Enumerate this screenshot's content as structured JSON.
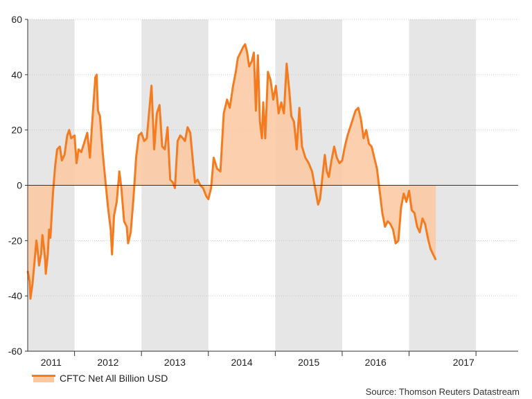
{
  "chart_data": {
    "type": "area",
    "title": "",
    "xlabel": "",
    "ylabel": "",
    "ylim": [
      -60,
      60
    ],
    "yticks": [
      60,
      40,
      20,
      0,
      -20,
      -40,
      -60
    ],
    "xlim": [
      2010.6,
      2017.93
    ],
    "year_labels": [
      "2011",
      "2012",
      "2013",
      "2014",
      "2015",
      "2016",
      "2017"
    ],
    "shaded_years": [
      {
        "start": 2010.6,
        "end": 2011.3
      },
      {
        "start": 2012.3,
        "end": 2013.3
      },
      {
        "start": 2014.3,
        "end": 2015.3
      },
      {
        "start": 2016.3,
        "end": 2017.3
      }
    ],
    "series": [
      {
        "name": "CFTC Net All Billion USD",
        "color": "#f47b20",
        "fill_color": "#fbc8a0",
        "points": [
          [
            2010.6,
            -31
          ],
          [
            2010.63,
            -35
          ],
          [
            2010.64,
            -41
          ],
          [
            2010.67,
            -36
          ],
          [
            2010.7,
            -28
          ],
          [
            2010.73,
            -20
          ],
          [
            2010.75,
            -24
          ],
          [
            2010.77,
            -29
          ],
          [
            2010.8,
            -25
          ],
          [
            2010.82,
            -18
          ],
          [
            2010.84,
            -22
          ],
          [
            2010.86,
            -27
          ],
          [
            2010.87,
            -32
          ],
          [
            2010.9,
            -25
          ],
          [
            2010.92,
            -16
          ],
          [
            2010.94,
            -19
          ],
          [
            2010.96,
            -10
          ],
          [
            2010.98,
            -2
          ],
          [
            2011.01,
            7
          ],
          [
            2011.04,
            13
          ],
          [
            2011.08,
            14
          ],
          [
            2011.11,
            9
          ],
          [
            2011.15,
            11
          ],
          [
            2011.19,
            18
          ],
          [
            2011.22,
            20
          ],
          [
            2011.25,
            17
          ],
          [
            2011.3,
            18
          ],
          [
            2011.33,
            8
          ],
          [
            2011.36,
            13
          ],
          [
            2011.4,
            12
          ],
          [
            2011.44,
            15
          ],
          [
            2011.49,
            19
          ],
          [
            2011.53,
            10
          ],
          [
            2011.57,
            25
          ],
          [
            2011.61,
            39
          ],
          [
            2011.63,
            40
          ],
          [
            2011.65,
            27
          ],
          [
            2011.68,
            25
          ],
          [
            2011.72,
            12
          ],
          [
            2011.76,
            2
          ],
          [
            2011.8,
            -8
          ],
          [
            2011.84,
            -16
          ],
          [
            2011.86,
            -25
          ],
          [
            2011.89,
            -11
          ],
          [
            2011.93,
            -6
          ],
          [
            2011.97,
            5
          ],
          [
            2012.0,
            -1
          ],
          [
            2012.04,
            -13
          ],
          [
            2012.08,
            -15
          ],
          [
            2012.1,
            -21
          ],
          [
            2012.14,
            -17
          ],
          [
            2012.18,
            -5
          ],
          [
            2012.22,
            10
          ],
          [
            2012.26,
            18
          ],
          [
            2012.3,
            19
          ],
          [
            2012.34,
            16
          ],
          [
            2012.38,
            17
          ],
          [
            2012.42,
            28
          ],
          [
            2012.45,
            36
          ],
          [
            2012.49,
            13
          ],
          [
            2012.53,
            26
          ],
          [
            2012.57,
            29
          ],
          [
            2012.61,
            14
          ],
          [
            2012.65,
            13
          ],
          [
            2012.69,
            21
          ],
          [
            2012.73,
            2
          ],
          [
            2012.77,
            1
          ],
          [
            2012.8,
            -1
          ],
          [
            2012.84,
            16
          ],
          [
            2012.88,
            18
          ],
          [
            2012.92,
            17
          ],
          [
            2012.95,
            16
          ],
          [
            2012.99,
            21
          ],
          [
            2013.03,
            19
          ],
          [
            2013.06,
            11
          ],
          [
            2013.1,
            1
          ],
          [
            2013.14,
            2
          ],
          [
            2013.18,
            0
          ],
          [
            2013.22,
            -1
          ],
          [
            2013.27,
            -4
          ],
          [
            2013.3,
            -5
          ],
          [
            2013.34,
            -1
          ],
          [
            2013.38,
            10
          ],
          [
            2013.43,
            6
          ],
          [
            2013.48,
            5
          ],
          [
            2013.53,
            26
          ],
          [
            2013.58,
            31
          ],
          [
            2013.62,
            28
          ],
          [
            2013.67,
            36
          ],
          [
            2013.71,
            41
          ],
          [
            2013.74,
            46
          ],
          [
            2013.78,
            48
          ],
          [
            2013.82,
            50
          ],
          [
            2013.85,
            51
          ],
          [
            2013.88,
            48
          ],
          [
            2013.91,
            43
          ],
          [
            2013.95,
            45
          ],
          [
            2013.98,
            48
          ],
          [
            2014.01,
            27
          ],
          [
            2014.04,
            47
          ],
          [
            2014.07,
            23
          ],
          [
            2014.1,
            17
          ],
          [
            2014.12,
            30
          ],
          [
            2014.15,
            17
          ],
          [
            2014.19,
            41
          ],
          [
            2014.23,
            38
          ],
          [
            2014.27,
            31
          ],
          [
            2014.31,
            36
          ],
          [
            2014.35,
            26
          ],
          [
            2014.39,
            30
          ],
          [
            2014.43,
            26
          ],
          [
            2014.47,
            44
          ],
          [
            2014.51,
            34
          ],
          [
            2014.54,
            25
          ],
          [
            2014.58,
            23
          ],
          [
            2014.62,
            13
          ],
          [
            2014.66,
            28
          ],
          [
            2014.7,
            14
          ],
          [
            2014.75,
            10
          ],
          [
            2014.8,
            8
          ],
          [
            2014.85,
            5
          ],
          [
            2014.88,
            1
          ],
          [
            2014.91,
            -3
          ],
          [
            2014.94,
            -7
          ],
          [
            2014.97,
            -5
          ],
          [
            2015.0,
            2
          ],
          [
            2015.04,
            11
          ],
          [
            2015.07,
            5
          ],
          [
            2015.1,
            3
          ],
          [
            2015.14,
            9
          ],
          [
            2015.18,
            14
          ],
          [
            2015.22,
            10
          ],
          [
            2015.26,
            8
          ],
          [
            2015.3,
            9
          ],
          [
            2015.34,
            14
          ],
          [
            2015.38,
            18
          ],
          [
            2015.42,
            21
          ],
          [
            2015.46,
            24
          ],
          [
            2015.5,
            27
          ],
          [
            2015.54,
            28
          ],
          [
            2015.58,
            24
          ],
          [
            2015.62,
            17
          ],
          [
            2015.66,
            20
          ],
          [
            2015.7,
            15
          ],
          [
            2015.74,
            14
          ],
          [
            2015.78,
            10
          ],
          [
            2015.82,
            6
          ],
          [
            2015.86,
            -2
          ],
          [
            2015.9,
            -10
          ],
          [
            2015.94,
            -15
          ],
          [
            2015.98,
            -13
          ],
          [
            2016.02,
            -14
          ],
          [
            2016.06,
            -16
          ],
          [
            2016.1,
            -21
          ],
          [
            2016.14,
            -20
          ],
          [
            2016.18,
            -8
          ],
          [
            2016.22,
            -3
          ],
          [
            2016.26,
            -6
          ],
          [
            2016.3,
            -2
          ],
          [
            2016.34,
            -9
          ],
          [
            2016.38,
            -10
          ],
          [
            2016.42,
            -15
          ],
          [
            2016.46,
            -17
          ],
          [
            2016.5,
            -12
          ],
          [
            2016.54,
            -14
          ],
          [
            2016.58,
            -19
          ],
          [
            2016.62,
            -23
          ],
          [
            2016.66,
            -25
          ],
          [
            2016.7,
            -27
          ]
        ]
      }
    ],
    "legend_label": "CFTC Net All Billion USD",
    "source": "Source: Thomson Reuters Datastream"
  }
}
